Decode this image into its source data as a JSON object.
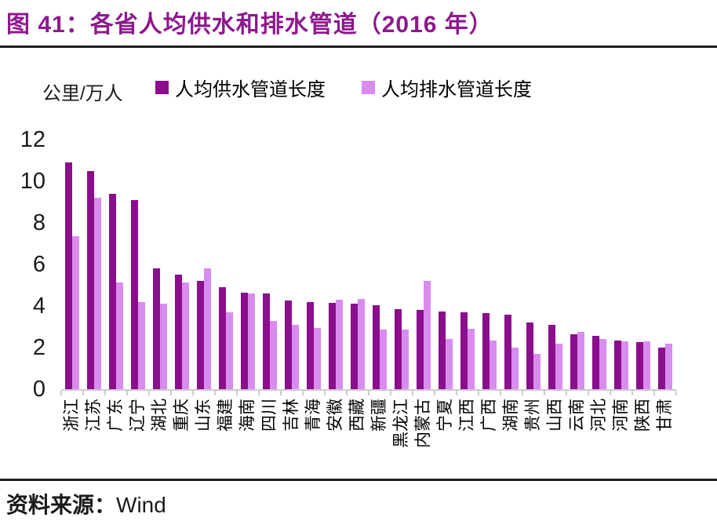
{
  "figure": {
    "title": "图 41：各省人均供水和排水管道（2016 年）",
    "source_label": "资料来源：",
    "source_value": "Wind"
  },
  "colors": {
    "accent": "#8E188E",
    "supply_bar": "#8B0E8C",
    "drain_bar": "#D98CEF",
    "axis": "#CCCCCC",
    "rule": "#1F1F1F",
    "text": "#1A1A1A"
  },
  "chart_data": {
    "type": "bar",
    "title": "各省人均供水和排水管道（2016 年）",
    "unit_label": "公里/万人",
    "ylabel": "公里/万人",
    "ylim": [
      0,
      12
    ],
    "yticks": [
      0,
      2,
      4,
      6,
      8,
      10,
      12
    ],
    "grid": false,
    "legend_position": "top",
    "categories": [
      "浙江",
      "江苏",
      "广东",
      "辽宁",
      "湖北",
      "重庆",
      "山东",
      "福建",
      "海南",
      "四川",
      "吉林",
      "青海",
      "安徽",
      "西藏",
      "新疆",
      "黑龙江",
      "内蒙古",
      "宁夏",
      "江西",
      "广西",
      "湖南",
      "贵州",
      "山西",
      "云南",
      "河北",
      "河南",
      "陕西",
      "甘肃"
    ],
    "series": [
      {
        "name": "人均供水管道长度",
        "color": "#8B0E8C",
        "values": [
          10.9,
          10.5,
          9.4,
          9.1,
          5.8,
          5.5,
          5.2,
          4.9,
          4.65,
          4.6,
          4.25,
          4.2,
          4.15,
          4.1,
          4.05,
          3.85,
          3.8,
          3.75,
          3.7,
          3.65,
          3.6,
          3.2,
          3.1,
          2.65,
          2.55,
          2.35,
          2.25,
          2.0
        ]
      },
      {
        "name": "人均排水管道长度",
        "color": "#D98CEF",
        "values": [
          7.35,
          9.2,
          5.15,
          4.2,
          4.1,
          5.15,
          5.8,
          3.7,
          4.6,
          3.3,
          3.1,
          2.95,
          4.3,
          4.35,
          2.85,
          2.85,
          5.2,
          2.4,
          2.9,
          2.35,
          2.0,
          1.7,
          2.2,
          2.75,
          2.4,
          2.3,
          2.3,
          2.2
        ]
      }
    ]
  }
}
